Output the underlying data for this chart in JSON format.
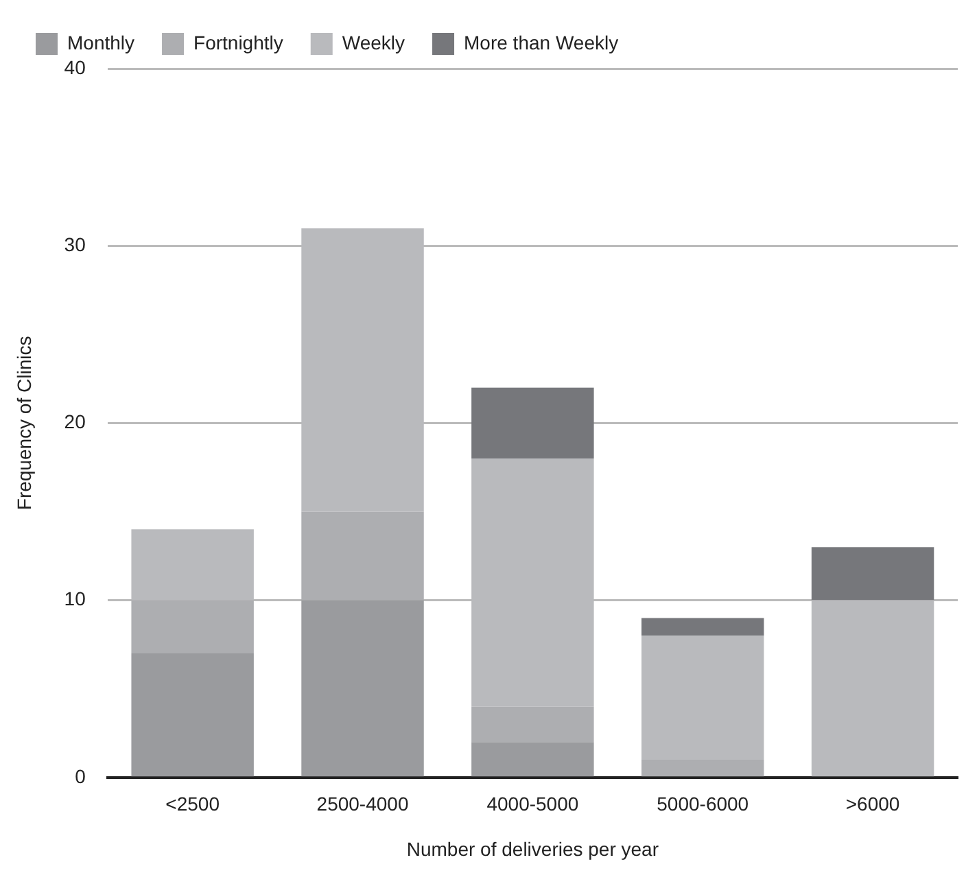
{
  "chart_data": {
    "type": "bar",
    "stacked": true,
    "xlabel": "Number of deliveries per year",
    "ylabel": "Frequency of Clinics",
    "categories": [
      "<2500",
      "2500-4000",
      "4000-5000",
      "5000-6000",
      ">6000"
    ],
    "series": [
      {
        "name": "Monthly",
        "color": "#9a9b9e",
        "values": [
          7,
          10,
          2,
          0,
          0
        ]
      },
      {
        "name": "Fortnightly",
        "color": "#adaeb1",
        "values": [
          3,
          5,
          2,
          1,
          0
        ]
      },
      {
        "name": "Weekly",
        "color": "#b9babd",
        "values": [
          4,
          16,
          14,
          7,
          10
        ]
      },
      {
        "name": "More than Weekly",
        "color": "#76777b",
        "values": [
          0,
          0,
          4,
          1,
          3
        ]
      }
    ],
    "ylim": [
      0,
      40
    ],
    "yticks": [
      0,
      10,
      20,
      30,
      40
    ],
    "grid": "y",
    "legend": "top"
  }
}
